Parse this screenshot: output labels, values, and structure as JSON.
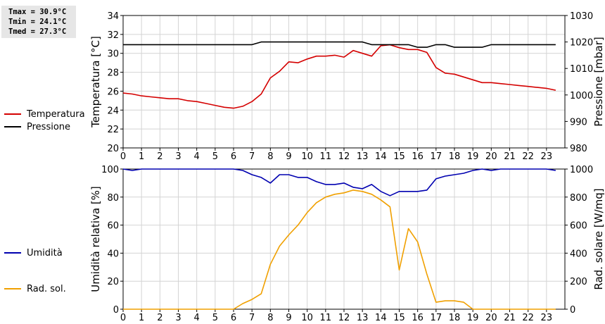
{
  "stats": {
    "tmax": "Tmax = 30.9°C",
    "tmin": "Tmin = 24.1°C",
    "tmed": "Tmed = 27.3°C"
  },
  "chart_data": [
    {
      "type": "line",
      "ylabel": "Temperatura [°C]",
      "y2label": "Pressione [mbar]",
      "ylim": [
        20,
        34
      ],
      "y2lim": [
        980,
        1030
      ],
      "yticks": [
        "20",
        "22",
        "24",
        "26",
        "28",
        "30",
        "32",
        "34"
      ],
      "y2ticks": [
        "980",
        "990",
        "1000",
        "1010",
        "1020",
        "1030"
      ],
      "xlim": [
        0,
        24
      ],
      "xticks": [
        "0",
        "1",
        "2",
        "3",
        "4",
        "5",
        "6",
        "7",
        "8",
        "9",
        "10",
        "11",
        "12",
        "13",
        "14",
        "15",
        "16",
        "17",
        "18",
        "19",
        "20",
        "21",
        "22",
        "23"
      ],
      "grid": true,
      "legend_position": "left",
      "series": [
        {
          "name": "Temperatura",
          "axis": "left",
          "color": "#d40000",
          "x": [
            0,
            0.5,
            1,
            1.5,
            2,
            2.5,
            3,
            3.5,
            4,
            4.5,
            5,
            5.5,
            6,
            6.5,
            7,
            7.5,
            8,
            8.5,
            9,
            9.5,
            10,
            10.5,
            11,
            11.5,
            12,
            12.5,
            13,
            13.5,
            14,
            14.5,
            15,
            15.5,
            16,
            16.5,
            17,
            17.5,
            18,
            18.5,
            19,
            19.5,
            20,
            20.5,
            21,
            21.5,
            22,
            22.5,
            23,
            23.5
          ],
          "values": [
            25.8,
            25.7,
            25.5,
            25.4,
            25.3,
            25.2,
            25.2,
            25.0,
            24.9,
            24.7,
            24.5,
            24.3,
            24.2,
            24.4,
            24.9,
            25.7,
            27.4,
            28.1,
            29.1,
            29.0,
            29.4,
            29.7,
            29.7,
            29.8,
            29.6,
            30.3,
            30.0,
            29.7,
            30.8,
            30.9,
            30.6,
            30.4,
            30.4,
            30.1,
            28.5,
            27.9,
            27.8,
            27.5,
            27.2,
            26.9,
            26.9,
            26.8,
            26.7,
            26.6,
            26.5,
            26.4,
            26.3,
            26.1
          ]
        },
        {
          "name": "Pressione",
          "axis": "right",
          "color": "#000000",
          "x": [
            0,
            1,
            2,
            3,
            4,
            5,
            6,
            7,
            7.5,
            8,
            9,
            10,
            11,
            12,
            13,
            13.5,
            14,
            15,
            15.5,
            16,
            16.5,
            17,
            17.5,
            18,
            19,
            19.5,
            20,
            21,
            22,
            23,
            23.5
          ],
          "values": [
            1019,
            1019,
            1019,
            1019,
            1019,
            1019,
            1019,
            1019,
            1020,
            1020,
            1020,
            1020,
            1020,
            1020,
            1020,
            1019,
            1019,
            1019,
            1019,
            1018,
            1018,
            1019,
            1019,
            1018,
            1018,
            1018,
            1019,
            1019,
            1019,
            1019,
            1019
          ]
        }
      ]
    },
    {
      "type": "line",
      "ylabel": "Umidità relativa [%]",
      "y2label": "Rad. solare [W/mq]",
      "ylim": [
        0,
        100
      ],
      "y2lim": [
        0,
        1000
      ],
      "yticks": [
        "0",
        "20",
        "40",
        "60",
        "80",
        "100"
      ],
      "y2ticks": [
        "0",
        "200",
        "400",
        "600",
        "800",
        "1000"
      ],
      "xlim": [
        0,
        24
      ],
      "xticks": [
        "0",
        "1",
        "2",
        "3",
        "4",
        "5",
        "6",
        "7",
        "8",
        "9",
        "10",
        "11",
        "12",
        "13",
        "14",
        "15",
        "16",
        "17",
        "18",
        "19",
        "20",
        "21",
        "22",
        "23"
      ],
      "grid": true,
      "legend_position": "left",
      "series": [
        {
          "name": "Umidità",
          "axis": "left",
          "color": "#0000b0",
          "x": [
            0,
            0.5,
            1,
            6,
            6.5,
            7,
            7.5,
            8,
            8.5,
            9,
            9.5,
            10,
            10.5,
            11,
            11.5,
            12,
            12.5,
            13,
            13.5,
            14,
            14.5,
            15,
            15.5,
            16,
            16.5,
            17,
            17.5,
            18,
            18.5,
            19,
            19.5,
            20,
            20.5,
            23,
            23.5
          ],
          "values": [
            100,
            99,
            100,
            100,
            99,
            96,
            94,
            90,
            96,
            96,
            94,
            94,
            91,
            89,
            89,
            90,
            87,
            86,
            89,
            84,
            81,
            84,
            84,
            84,
            85,
            93,
            95,
            96,
            97,
            99,
            100,
            99,
            100,
            100,
            99
          ]
        },
        {
          "name": "Rad. sol.",
          "axis": "right",
          "color": "#f0a000",
          "x": [
            0,
            1,
            2,
            3,
            4,
            5,
            6,
            6.5,
            7,
            7.5,
            8,
            8.5,
            9,
            9.5,
            10,
            10.5,
            11,
            11.5,
            12,
            12.5,
            13,
            13.5,
            14,
            14.5,
            15,
            15.5,
            16,
            16.5,
            17,
            17.5,
            18,
            18.5,
            19,
            20,
            21,
            22,
            23,
            23.5
          ],
          "values": [
            0,
            0,
            0,
            0,
            0,
            0,
            0,
            40,
            70,
            110,
            320,
            450,
            530,
            600,
            690,
            760,
            800,
            820,
            830,
            850,
            840,
            820,
            780,
            730,
            280,
            575,
            480,
            250,
            50,
            60,
            60,
            50,
            0,
            0,
            0,
            0,
            0,
            0
          ]
        }
      ]
    }
  ]
}
